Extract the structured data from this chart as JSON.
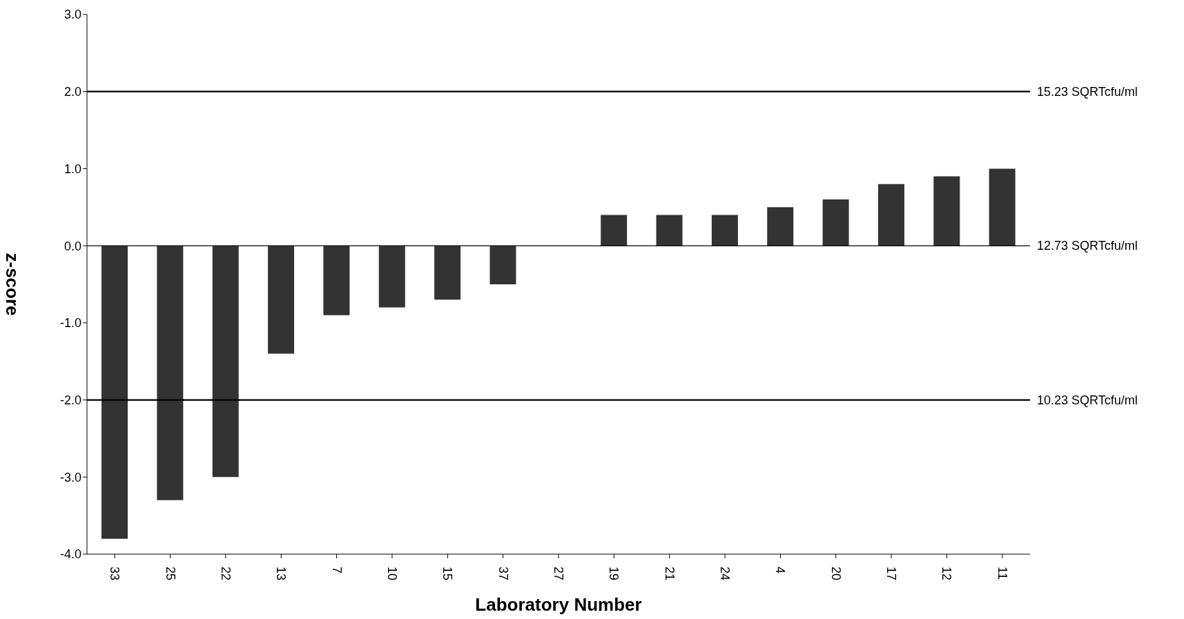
{
  "chart_data": {
    "type": "bar",
    "xlabel": "Laboratory Number",
    "ylabel": "z-score",
    "categories": [
      "33",
      "25",
      "22",
      "13",
      "7",
      "10",
      "15",
      "37",
      "27",
      "19",
      "21",
      "24",
      "4",
      "20",
      "17",
      "12",
      "11"
    ],
    "values": [
      -3.8,
      -3.3,
      -3.0,
      -1.4,
      -0.9,
      -0.8,
      -0.7,
      -0.5,
      0,
      0.4,
      0.4,
      0.4,
      0.5,
      0.6,
      0.8,
      0.9,
      1.0
    ],
    "color": "#333333",
    "ylim": [
      -4,
      3
    ],
    "yticks": [
      {
        "value": -4,
        "label": "-4.0"
      },
      {
        "value": -3,
        "label": "-3.0"
      },
      {
        "value": -2,
        "label": "-2.0"
      },
      {
        "value": -1,
        "label": "-1.0"
      },
      {
        "value": 0,
        "label": "0.0"
      },
      {
        "value": 1,
        "label": "1.0"
      },
      {
        "value": 2,
        "label": "2.0"
      },
      {
        "value": 3,
        "label": "3.0"
      }
    ],
    "ref_lines": [
      {
        "axis": "y",
        "value": 2,
        "label": "15.23 SQRTcfu/ml",
        "color": "#000000"
      },
      {
        "axis": "y",
        "value": 0,
        "label": "12.73 SQRTcfu/ml",
        "color": "#000000"
      },
      {
        "axis": "y",
        "value": -2,
        "label": "10.23 SQRTcfu/ml",
        "color": "#000000"
      }
    ],
    "grid": false,
    "legend": false
  }
}
